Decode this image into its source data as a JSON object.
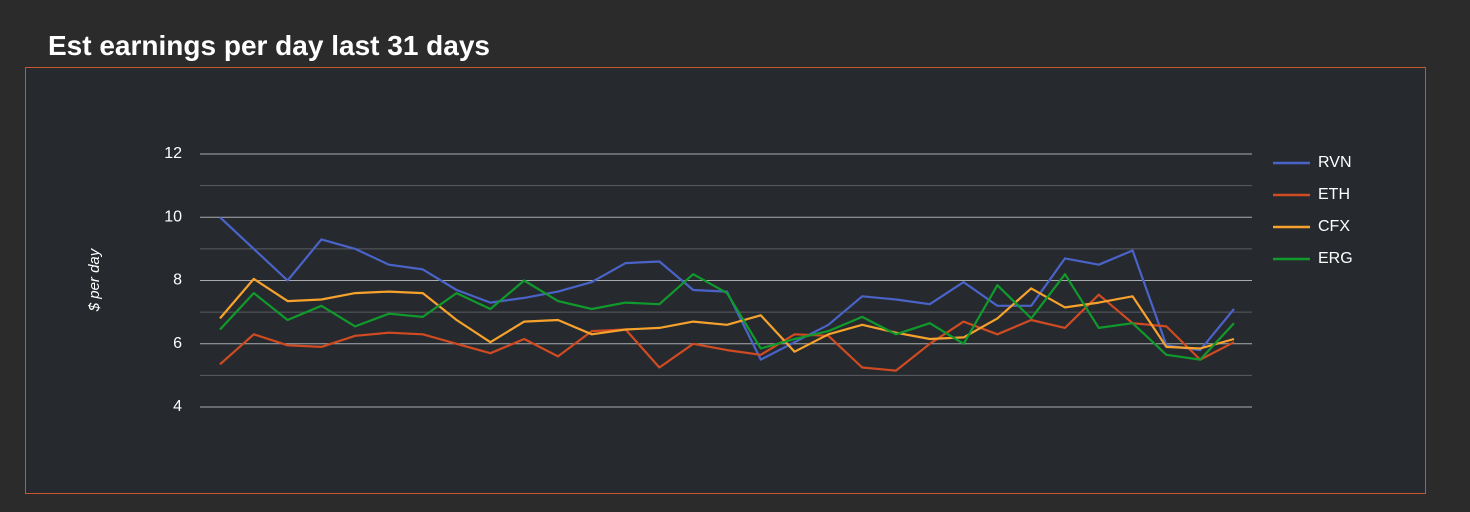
{
  "chart_data": {
    "type": "line",
    "title": "Est earnings per day last 31 days",
    "y_label": "$ per day",
    "ylim": [
      4,
      12
    ],
    "yticks": [
      4,
      6,
      8,
      10,
      12
    ],
    "minor_yticks": [
      5,
      7,
      9,
      11
    ],
    "grid": true,
    "legend": "right",
    "series": [
      {
        "name": "RVN",
        "color": "#4a63c8",
        "values": [
          10,
          9.0,
          8.0,
          9.3,
          9.0,
          8.5,
          8.35,
          7.7,
          7.3,
          7.45,
          7.65,
          7.95,
          8.55,
          8.6,
          7.7,
          7.65,
          5.5,
          6.05,
          6.6,
          7.5,
          7.4,
          7.25,
          7.95,
          7.2,
          7.2,
          8.7,
          8.5,
          8.95,
          5.95,
          5.8,
          7.1
        ]
      },
      {
        "name": "ETH",
        "color": "#d04a22",
        "values": [
          5.35,
          6.3,
          5.95,
          5.9,
          6.25,
          6.35,
          6.3,
          6.0,
          5.7,
          6.15,
          5.6,
          6.4,
          6.45,
          5.25,
          6.0,
          5.8,
          5.65,
          6.3,
          6.25,
          5.25,
          5.15,
          6.0,
          6.7,
          6.3,
          6.75,
          6.5,
          7.55,
          6.65,
          6.55,
          5.5,
          6.05
        ]
      },
      {
        "name": "CFX",
        "color": "#f6a22c",
        "values": [
          6.8,
          8.05,
          7.35,
          7.4,
          7.6,
          7.65,
          7.6,
          6.75,
          6.05,
          6.7,
          6.75,
          6.3,
          6.45,
          6.5,
          6.7,
          6.6,
          6.9,
          5.75,
          6.3,
          6.6,
          6.35,
          6.15,
          6.2,
          6.8,
          7.75,
          7.15,
          7.3,
          7.5,
          5.9,
          5.85,
          6.15
        ]
      },
      {
        "name": "ERG",
        "color": "#109a2c",
        "values": [
          6.45,
          7.6,
          6.75,
          7.2,
          6.55,
          6.95,
          6.85,
          7.6,
          7.1,
          8.0,
          7.35,
          7.1,
          7.3,
          7.25,
          8.2,
          7.6,
          5.85,
          6.15,
          6.4,
          6.85,
          6.3,
          6.65,
          6.0,
          7.85,
          6.8,
          8.2,
          6.5,
          6.65,
          5.65,
          5.5,
          6.65
        ]
      }
    ]
  }
}
